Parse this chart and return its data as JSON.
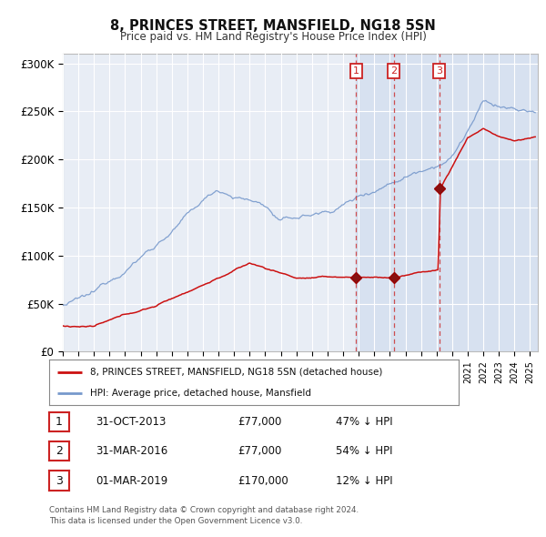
{
  "title": "8, PRINCES STREET, MANSFIELD, NG18 5SN",
  "subtitle": "Price paid vs. HM Land Registry's House Price Index (HPI)",
  "red_line_label": "8, PRINCES STREET, MANSFIELD, NG18 5SN (detached house)",
  "blue_line_label": "HPI: Average price, detached house, Mansfield",
  "transactions": [
    {
      "num": 1,
      "date": "31-OCT-2013",
      "price": 77000,
      "hpi_pct": "47% ↓ HPI",
      "year": 2013.833
    },
    {
      "num": 2,
      "date": "31-MAR-2016",
      "price": 77000,
      "hpi_pct": "54% ↓ HPI",
      "year": 2016.25
    },
    {
      "num": 3,
      "date": "01-MAR-2019",
      "price": 170000,
      "hpi_pct": "12% ↓ HPI",
      "year": 2019.167
    }
  ],
  "footer": "Contains HM Land Registry data © Crown copyright and database right 2024.\nThis data is licensed under the Open Government Licence v3.0.",
  "ylim": [
    0,
    310000
  ],
  "xlim_start": 1995.0,
  "xlim_end": 2025.5,
  "fig_bg": "#f5f5f5",
  "plot_bg": "#e8edf5",
  "shade_color": "#d0dcee",
  "grid_color": "#c8c8d8",
  "red_color": "#cc1111",
  "blue_color": "#7799cc",
  "marker_color": "#990000"
}
